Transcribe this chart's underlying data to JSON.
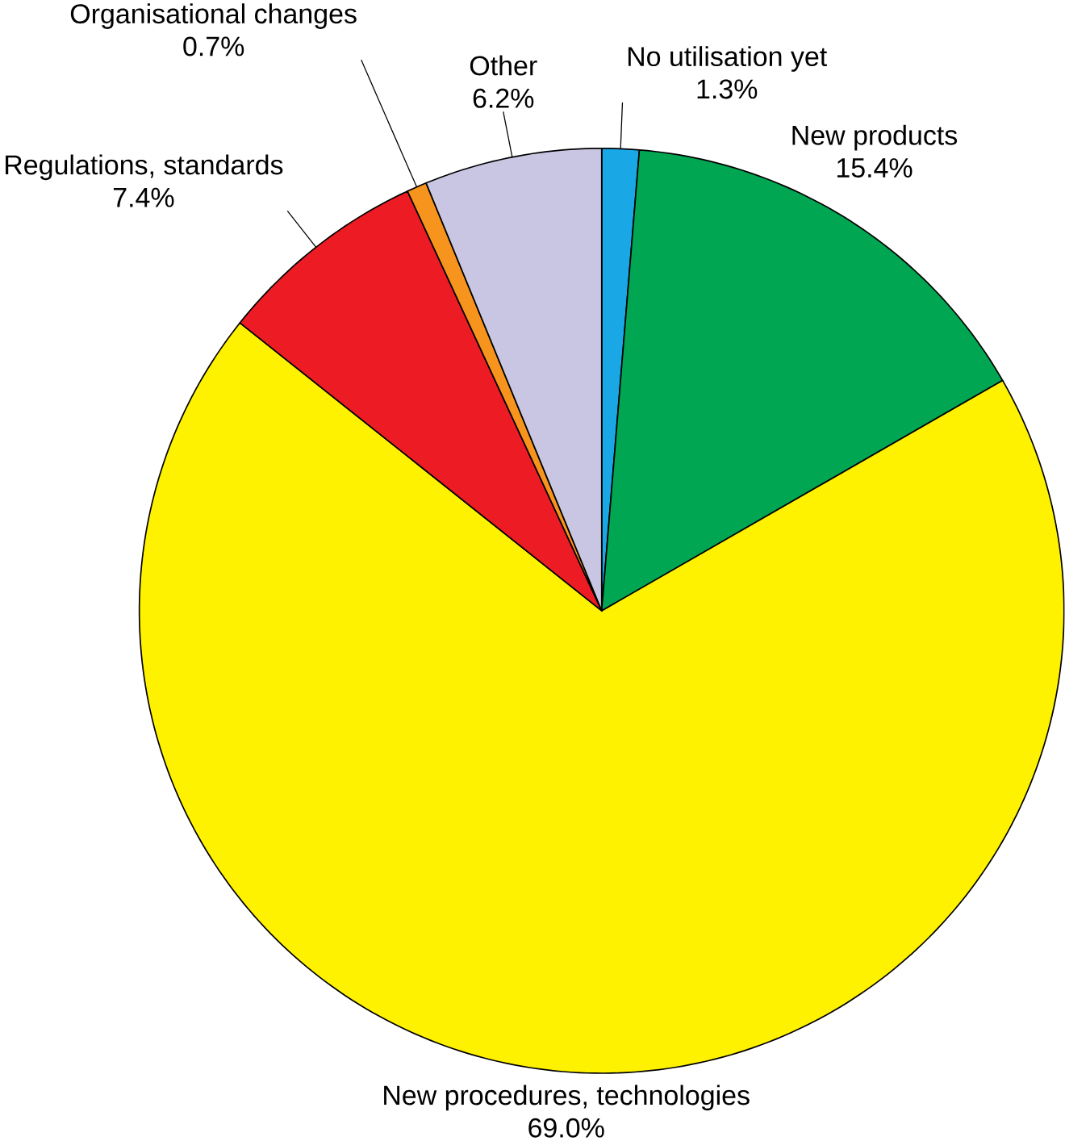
{
  "chart_data": {
    "type": "pie",
    "categories": [
      "No utilisation yet",
      "New products",
      "New procedures, technologies",
      "Regulations, standards",
      "Organisational changes",
      "Other"
    ],
    "values": [
      1.3,
      15.4,
      69.0,
      7.4,
      0.7,
      6.2
    ],
    "value_labels": [
      "1.3%",
      "15.4%",
      "69.0%",
      "7.4%",
      "0.7%",
      "6.2%"
    ],
    "colors": [
      "#1aa7e6",
      "#00a651",
      "#fff200",
      "#ed1c24",
      "#f7941d",
      "#c8c6e2"
    ]
  }
}
